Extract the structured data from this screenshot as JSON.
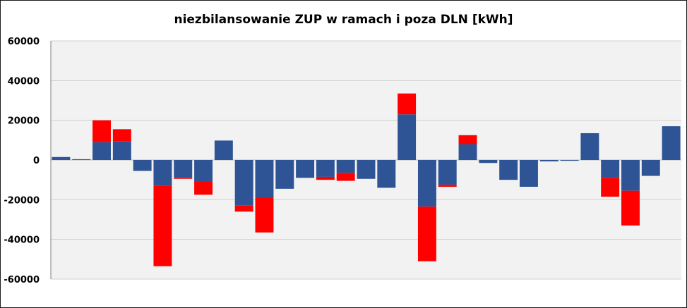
{
  "chart_data": {
    "type": "bar",
    "stacked": true,
    "title": "niezbilansowanie ZUP w ramach i poza DLN [kWh]",
    "xlabel": "",
    "ylabel": "",
    "ylim": [
      -60000,
      60000
    ],
    "yticks": [
      "60000",
      "40000",
      "20000",
      "0",
      "-20000",
      "-40000",
      "-60000"
    ],
    "grid": true,
    "legend": "none",
    "series": [
      {
        "color": "#2e5496",
        "values": [
          1500,
          400,
          9000,
          9500,
          -5500,
          -13000,
          -9000,
          -11000,
          9800,
          -23000,
          -19000,
          -14500,
          -9000,
          -8500,
          -6500,
          -9500,
          -14000,
          23000,
          -23500,
          -12500,
          8000,
          -1500,
          -10000,
          -13500,
          -700,
          -400,
          13500,
          -9000,
          -15500,
          -8000,
          17000
        ]
      },
      {
        "color": "#ff0000",
        "values": [
          0,
          0,
          11000,
          6000,
          0,
          -40500,
          -500,
          -6500,
          0,
          -3000,
          -17500,
          0,
          0,
          -1500,
          -4000,
          0,
          0,
          10500,
          -27500,
          -1000,
          4500,
          0,
          0,
          0,
          0,
          0,
          0,
          -9500,
          -17500,
          0,
          0
        ]
      }
    ]
  }
}
